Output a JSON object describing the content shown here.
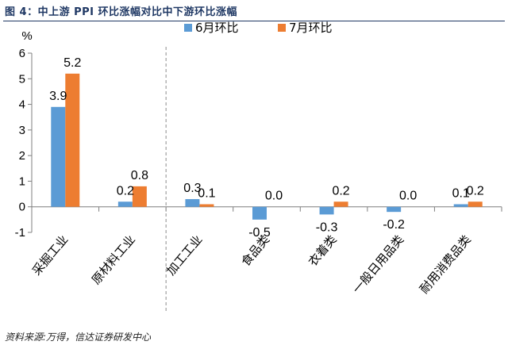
{
  "header": {
    "title": "图 4：中上游 PPI 环比涨幅对比中下游环比涨幅"
  },
  "footer": {
    "source": "资料来源:万得，信达证券研发中心"
  },
  "chart_data": {
    "type": "bar",
    "title": "",
    "ylabel": "%",
    "xlabel": "",
    "ylim": [
      -1,
      6
    ],
    "yticks": [
      -1,
      0,
      1,
      2,
      3,
      4,
      5,
      6
    ],
    "grid": false,
    "legend_position": "top",
    "categories": [
      "采掘工业",
      "原材料工业",
      "加工工业",
      "食品类",
      "衣着类",
      "一般日用品类",
      "耐用消费品类"
    ],
    "series": [
      {
        "name": "6月环比",
        "color": "#5b9bd5",
        "values": [
          3.9,
          0.2,
          0.3,
          -0.5,
          -0.3,
          -0.2,
          0.1
        ]
      },
      {
        "name": "7月环比",
        "color": "#ed7d31",
        "values": [
          5.2,
          0.8,
          0.1,
          0.0,
          0.2,
          0.0,
          0.2
        ]
      }
    ],
    "data_labels": [
      [
        "3.9",
        "0.2",
        "0.3",
        "-0.5",
        "-0.3",
        "-0.2",
        "0.1"
      ],
      [
        "5.2",
        "0.8",
        "0.1",
        "0.0",
        "0.2",
        "0.0",
        "0.2"
      ]
    ]
  }
}
